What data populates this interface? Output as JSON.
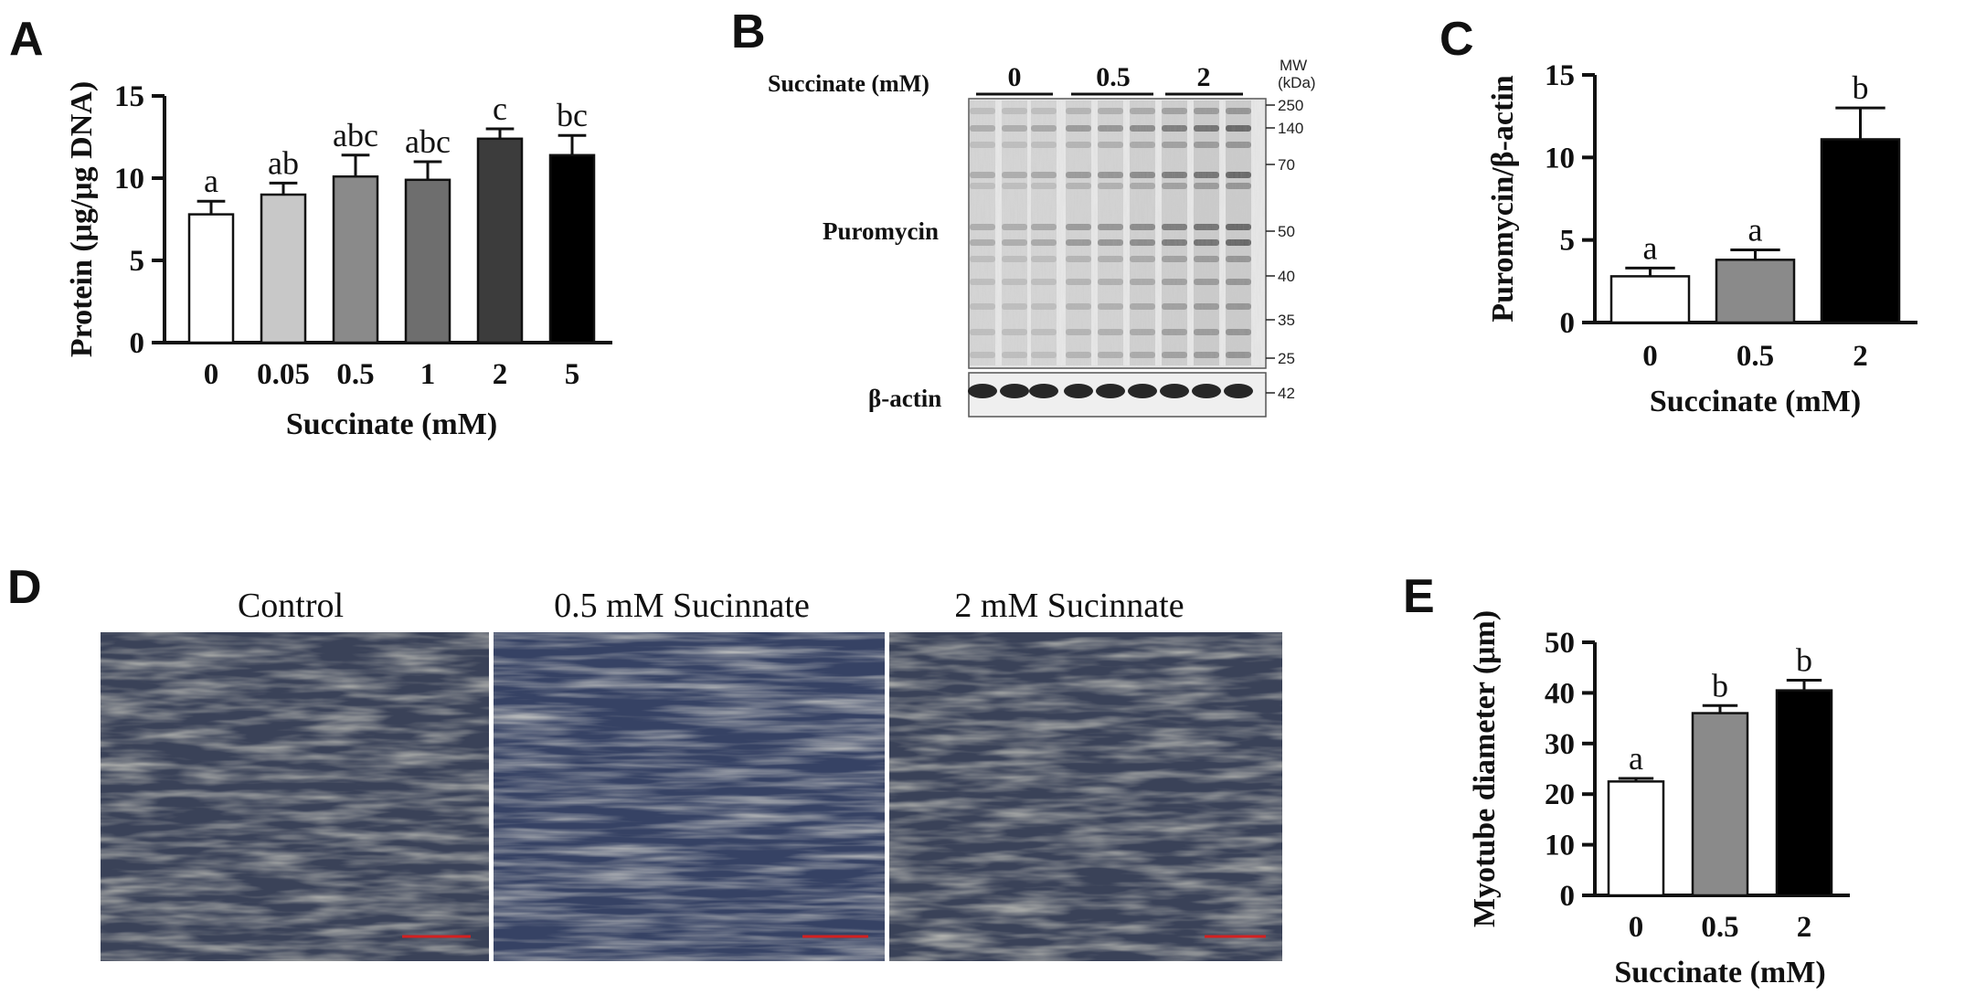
{
  "panels": {
    "A": "A",
    "B": "B",
    "C": "C",
    "D": "D",
    "E": "E"
  },
  "colors": {
    "white": "#ffffff",
    "light_gray": "#c8c8c8",
    "gray": "#8a8a8a",
    "mid_gray": "#6e6e6e",
    "dark_gray": "#3c3c3c",
    "black": "#000000",
    "scale_bar": "#d42020"
  },
  "chart_data": [
    {
      "panel": "A",
      "type": "bar",
      "categories": [
        "0",
        "0.05",
        "0.5",
        "1",
        "2",
        "5"
      ],
      "values": [
        7.8,
        9.0,
        10.1,
        9.9,
        12.4,
        11.4
      ],
      "errors": [
        0.8,
        0.7,
        1.3,
        1.1,
        0.6,
        1.2
      ],
      "letters": [
        "a",
        "ab",
        "abc",
        "abc",
        "c",
        "bc"
      ],
      "fills": [
        "#ffffff",
        "#c8c8c8",
        "#8a8a8a",
        "#6e6e6e",
        "#3c3c3c",
        "#000000"
      ],
      "xlabel": "Succinate (mM)",
      "ylabel": "Protein (μg/μg DNA)",
      "ylim": [
        0,
        15
      ],
      "yticks": [
        0,
        5,
        10,
        15
      ]
    },
    {
      "panel": "C",
      "type": "bar",
      "categories": [
        "0",
        "0.5",
        "2"
      ],
      "values": [
        2.8,
        3.8,
        11.1
      ],
      "errors": [
        0.5,
        0.6,
        1.9
      ],
      "letters": [
        "a",
        "a",
        "b"
      ],
      "fills": [
        "#ffffff",
        "#8a8a8a",
        "#000000"
      ],
      "xlabel": "Succinate (mM)",
      "ylabel": "Puromycin/β-actin",
      "ylim": [
        0,
        15
      ],
      "yticks": [
        0,
        5,
        10,
        15
      ]
    },
    {
      "panel": "E",
      "type": "bar",
      "categories": [
        "0",
        "0.5",
        "2"
      ],
      "values": [
        22.5,
        36.0,
        40.5
      ],
      "errors": [
        0.6,
        1.5,
        2.0
      ],
      "letters": [
        "a",
        "b",
        "b"
      ],
      "fills": [
        "#ffffff",
        "#8a8a8a",
        "#000000"
      ],
      "xlabel": "Succinate (mM)",
      "ylabel": "Myotube diameter (μm)",
      "ylim": [
        0,
        50
      ],
      "yticks": [
        0,
        10,
        20,
        30,
        40,
        50
      ]
    }
  ],
  "western_blot": {
    "treatment_label": "Succinate (mM)",
    "groups": [
      "0",
      "0.5",
      "2"
    ],
    "mw_header_line1": "MW",
    "mw_header_line2": "(kDa)",
    "mw_markers": [
      "250",
      "140",
      "70",
      "50",
      "40",
      "35",
      "25"
    ],
    "actin_marker": "42",
    "bands": [
      "Puromycin",
      "β-actin"
    ]
  },
  "micrographs": {
    "titles": [
      "Control",
      "0.5 mM Sucinnate",
      "2 mM Sucinnate"
    ]
  }
}
